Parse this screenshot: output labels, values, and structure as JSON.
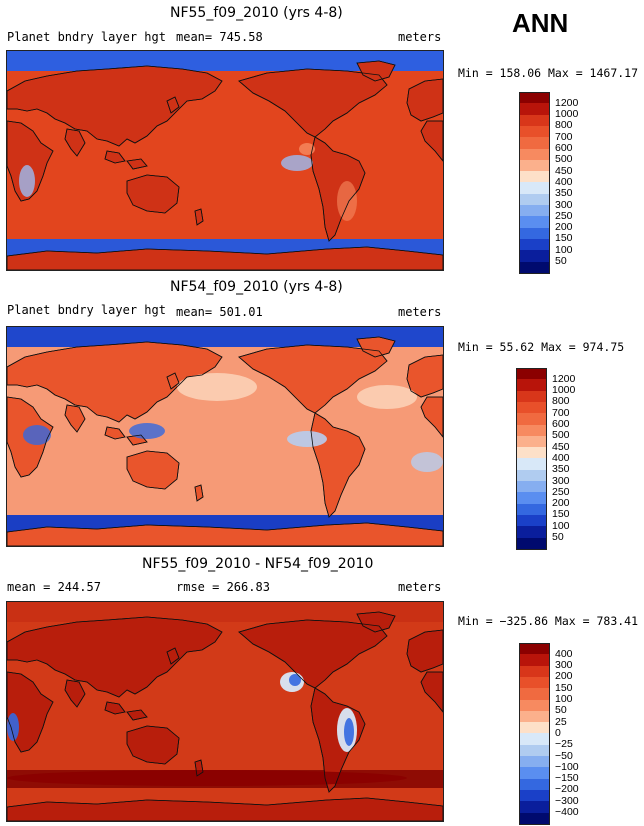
{
  "season": "ANN",
  "panels": [
    {
      "title": "NF55_f09_2010 (yrs 4-8)",
      "left_label": "Planet bndry layer hgt",
      "mid_label": "mean= 745.58",
      "units": "meters",
      "minmax": "Min = 158.06 Max = 1467.17",
      "legend": [
        "1200",
        "1000",
        "800",
        "700",
        "600",
        "500",
        "450",
        "400",
        "350",
        "300",
        "250",
        "200",
        "150",
        "100",
        "50"
      ],
      "colors": [
        "#8b0000",
        "#b8140a",
        "#d8361a",
        "#e8502a",
        "#f06a40",
        "#f78a60",
        "#fbb08c",
        "#fde0c8",
        "#d8e8f8",
        "#b0ccf0",
        "#86aef0",
        "#5a8ef0",
        "#3468e0",
        "#1a40c8",
        "#0a1e9c",
        "#000a6e"
      ],
      "map": {
        "ocean": "#e2451e",
        "land": "#cf3216",
        "polar_north": "#2e5fe0",
        "polar_south": "#2b58d8",
        "ice": "#9bbcf2"
      }
    },
    {
      "title": "NF54_f09_2010 (yrs 4-8)",
      "left_label": "Planet bndry layer hgt",
      "mid_label": "mean= 501.01",
      "units": "meters",
      "minmax": "Min =  55.62 Max = 974.75",
      "legend": [
        "1200",
        "1000",
        "800",
        "700",
        "600",
        "500",
        "450",
        "400",
        "350",
        "300",
        "250",
        "200",
        "150",
        "100",
        "50"
      ],
      "colors": [
        "#8b0000",
        "#b8140a",
        "#d8361a",
        "#e8502a",
        "#f06a40",
        "#f78a60",
        "#fbb08c",
        "#fde0c8",
        "#d8e8f8",
        "#b0ccf0",
        "#86aef0",
        "#5a8ef0",
        "#3468e0",
        "#1a40c8",
        "#0a1e9c",
        "#000a6e"
      ],
      "map": {
        "ocean": "#f69a76",
        "land": "#e9552c",
        "polar_north": "#1f47cc",
        "polar_south": "#1a3ec4",
        "ice": "#b7cdf0"
      }
    },
    {
      "title": "NF55_f09_2010 - NF54_f09_2010",
      "left_label": "mean = 244.57",
      "mid_label": "rmse = 266.83",
      "units": "meters",
      "minmax": "Min = −325.86 Max = 783.41",
      "legend": [
        "400",
        "300",
        "200",
        "150",
        "100",
        "50",
        "25",
        "0",
        "−25",
        "−50",
        "−100",
        "−150",
        "−200",
        "−300",
        "−400"
      ],
      "colors": [
        "#8b0000",
        "#b8140a",
        "#d8361a",
        "#e8502a",
        "#f06a40",
        "#f78a60",
        "#fbb08c",
        "#fde0c8",
        "#d8e8f8",
        "#b0ccf0",
        "#86aef0",
        "#5a8ef0",
        "#3468e0",
        "#1a40c8",
        "#0a1e9c",
        "#000a6e"
      ],
      "map": {
        "ocean": "#d23a18",
        "land": "#b81e0c",
        "polar_north": "#c93014",
        "polar_south": "#8f0c04",
        "ice": "#e05a30"
      }
    }
  ]
}
